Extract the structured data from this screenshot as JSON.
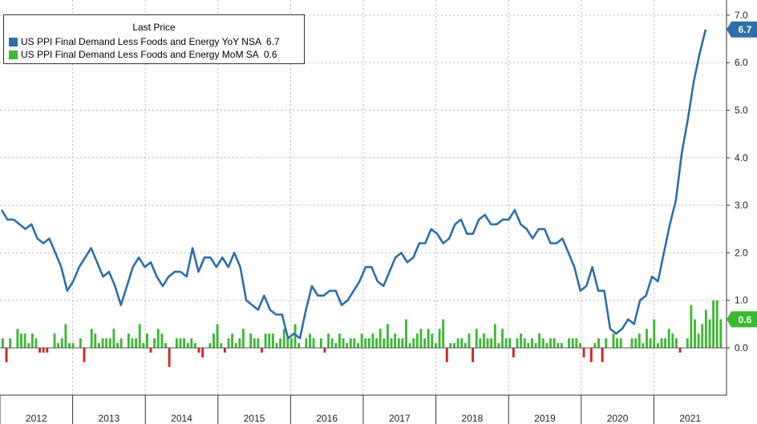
{
  "chart_data": {
    "type": "bar+line",
    "title": "",
    "xlabel": "",
    "ylabel": "",
    "ylim": [
      -1,
      7
    ],
    "yticks": [
      "7.0",
      "6.0",
      "5.0",
      "4.0",
      "3.0",
      "2.0",
      "1.0",
      "0.0"
    ],
    "grid": true,
    "legend_title": "Last Price",
    "legend_placement": "top-left",
    "years": [
      "2012",
      "2013",
      "2014",
      "2015",
      "2016",
      "2017",
      "2018",
      "2019",
      "2020",
      "2021"
    ],
    "series": [
      {
        "name": "US PPI Final Demand Less Foods and Energy YoY NSA",
        "type": "line",
        "color": "#2f6ea8",
        "last_value": "6.7",
        "values": [
          2.9,
          2.7,
          2.7,
          2.6,
          2.5,
          2.6,
          2.3,
          2.2,
          2.3,
          2.0,
          1.7,
          1.2,
          1.4,
          1.7,
          1.9,
          2.1,
          1.8,
          1.5,
          1.6,
          1.3,
          0.9,
          1.3,
          1.7,
          1.9,
          1.7,
          1.8,
          1.5,
          1.3,
          1.5,
          1.6,
          1.6,
          1.5,
          2.1,
          1.6,
          1.9,
          1.9,
          1.7,
          1.9,
          1.7,
          2.0,
          1.7,
          1.0,
          0.9,
          0.8,
          1.1,
          0.8,
          0.7,
          0.7,
          0.2,
          0.3,
          0.2,
          0.8,
          1.3,
          1.1,
          1.1,
          1.2,
          1.2,
          0.9,
          1.0,
          1.2,
          1.4,
          1.7,
          1.7,
          1.4,
          1.3,
          1.6,
          1.9,
          2.0,
          1.8,
          1.9,
          2.2,
          2.2,
          2.5,
          2.4,
          2.2,
          2.3,
          2.6,
          2.7,
          2.4,
          2.4,
          2.7,
          2.8,
          2.6,
          2.6,
          2.7,
          2.7,
          2.9,
          2.6,
          2.5,
          2.3,
          2.5,
          2.5,
          2.2,
          2.2,
          2.3,
          2.0,
          1.7,
          1.2,
          1.3,
          1.7,
          1.2,
          1.2,
          0.4,
          0.3,
          0.4,
          0.6,
          0.5,
          1.0,
          1.1,
          1.5,
          1.4,
          2.0,
          2.6,
          3.1,
          4.1,
          4.8,
          5.6,
          6.2,
          6.7
        ]
      },
      {
        "name": "US PPI Final Demand Less Foods and Energy MoM SA",
        "type": "bar",
        "color": "#3cb833",
        "negative_color": "#d42222",
        "last_value": "0.6",
        "values": [
          0.2,
          -0.3,
          0.2,
          0.0,
          0.4,
          0.3,
          0.3,
          0.1,
          0.3,
          0.2,
          -0.1,
          -0.1,
          -0.1,
          0.0,
          0.3,
          0.1,
          0.2,
          0.5,
          0.1,
          0.1,
          0.0,
          0.2,
          -0.3,
          0.0,
          0.4,
          0.3,
          0.1,
          0.2,
          0.2,
          0.2,
          0.4,
          0.1,
          0.2,
          0.0,
          0.3,
          0.2,
          0.2,
          0.5,
          0.1,
          0.3,
          -0.1,
          0.2,
          0.4,
          0.3,
          0.1,
          -0.4,
          0.0,
          0.2,
          0.2,
          0.2,
          0.1,
          0.2,
          0.1,
          -0.1,
          -0.2,
          0.0,
          0.1,
          0.3,
          0.5,
          0.1,
          -0.1,
          0.2,
          0.3,
          0.1,
          0.2,
          0.4,
          0.0,
          0.3,
          0.2,
          0.2,
          -0.1,
          0.3,
          0.3,
          0.3,
          0.1,
          0.2,
          0.4,
          0.2,
          0.2,
          0.5,
          0.1,
          0.0,
          0.2,
          0.3,
          0.2,
          0.0,
          0.2,
          -0.1,
          0.3,
          0.2,
          0.1,
          0.3,
          0.2,
          0.1,
          0.2,
          0.2,
          0.1,
          0.3,
          0.2,
          0.2,
          0.3,
          0.2,
          0.4,
          0.2,
          0.5,
          0.2,
          0.3,
          0.2,
          0.2,
          0.6,
          0.1,
          0.2,
          0.3,
          0.4,
          0.2,
          0.4,
          0.3,
          0.1,
          0.4,
          0.6,
          -0.3,
          0.1,
          0.1,
          0.2,
          0.2,
          0.1,
          0.3,
          -0.3,
          0.4,
          0.2,
          0.3,
          0.2,
          0.2,
          0.5,
          0.1,
          0.4,
          0.2,
          0.2,
          -0.2,
          0.2,
          0.3,
          0.2,
          0.1,
          0.2,
          0.1,
          0.3,
          0.2,
          0.1,
          0.2,
          0.2,
          0.1,
          0.1,
          0.0,
          0.2,
          0.2,
          0.2,
          0.1,
          -0.2,
          0.0,
          -0.3,
          0.1,
          0.2,
          -0.3,
          0.2,
          0.0,
          0.3,
          0.2,
          0.2,
          0.0,
          0.0,
          0.2,
          0.2,
          0.3,
          0.1,
          0.4,
          0.2,
          0.6,
          0.1,
          0.2,
          0.2,
          0.4,
          0.3,
          0.2,
          -0.1,
          0.0,
          0.2,
          0.9,
          0.6,
          0.3,
          0.5,
          0.8,
          0.6,
          1.0,
          1.0,
          0.6
        ]
      }
    ]
  }
}
